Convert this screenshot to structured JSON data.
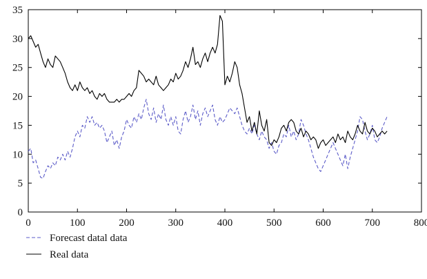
{
  "chart_data": {
    "type": "line",
    "title": "",
    "xlabel": "",
    "ylabel": "",
    "xlim": [
      0,
      800
    ],
    "ylim": [
      0,
      35
    ],
    "xticks": [
      0,
      100,
      200,
      300,
      400,
      500,
      600,
      700,
      800
    ],
    "yticks": [
      0,
      5,
      10,
      15,
      20,
      25,
      30,
      35
    ],
    "grid": false,
    "legend_position": "bottom-left",
    "series": [
      {
        "name": "Forecast datal data",
        "style": "dashed",
        "color": "#5b5bc8",
        "x": [
          0,
          5,
          10,
          15,
          20,
          25,
          30,
          35,
          40,
          45,
          50,
          55,
          60,
          65,
          70,
          75,
          80,
          85,
          90,
          95,
          100,
          105,
          110,
          115,
          120,
          125,
          130,
          135,
          140,
          145,
          150,
          155,
          160,
          165,
          170,
          175,
          180,
          185,
          190,
          195,
          200,
          205,
          210,
          215,
          220,
          225,
          230,
          235,
          240,
          245,
          250,
          255,
          260,
          265,
          270,
          275,
          280,
          285,
          290,
          295,
          300,
          305,
          310,
          315,
          320,
          325,
          330,
          335,
          340,
          345,
          350,
          355,
          360,
          365,
          370,
          375,
          380,
          385,
          390,
          395,
          400,
          405,
          410,
          415,
          420,
          425,
          430,
          435,
          440,
          445,
          450,
          455,
          460,
          465,
          470,
          475,
          480,
          485,
          490,
          495,
          500,
          505,
          510,
          515,
          520,
          525,
          530,
          535,
          540,
          545,
          550,
          555,
          560,
          565,
          570,
          575,
          580,
          585,
          590,
          595,
          600,
          605,
          610,
          615,
          620,
          625,
          630,
          635,
          640,
          645,
          650,
          655,
          660,
          665,
          670,
          675,
          680,
          685,
          690,
          695,
          700,
          705,
          710,
          715,
          720,
          725,
          730
        ],
        "values": [
          10.5,
          11,
          8.5,
          9,
          7.5,
          6,
          5.8,
          7,
          8,
          7.5,
          8.5,
          8,
          9.5,
          9,
          10,
          9,
          10.5,
          9.5,
          11,
          13,
          14,
          13,
          15,
          14.5,
          16.5,
          15.5,
          16.5,
          15,
          15.5,
          14.5,
          15,
          14,
          12,
          13,
          14,
          11.5,
          12.5,
          11,
          13,
          14,
          16,
          15,
          14.5,
          16.5,
          15.5,
          17,
          16,
          18,
          19.5,
          17,
          16,
          18,
          15.5,
          17,
          16,
          18.5,
          16,
          15,
          16.5,
          15,
          16.5,
          14,
          13.5,
          16,
          17.5,
          15.5,
          16.5,
          18.5,
          16,
          17.5,
          15,
          17,
          18,
          16.5,
          17.5,
          18.5,
          16,
          15,
          16.5,
          15.5,
          16,
          17,
          18,
          17.5,
          17,
          18,
          16.5,
          15,
          14,
          13.5,
          14.5,
          13.5,
          15,
          13.5,
          12.5,
          14,
          13,
          12.5,
          11,
          12,
          10.5,
          10,
          11.5,
          12,
          13.5,
          13,
          15,
          13,
          14,
          12.5,
          13.5,
          16,
          15,
          13.5,
          12.5,
          11,
          9.5,
          8.5,
          7.5,
          7,
          8,
          9,
          10,
          11,
          12,
          11,
          10,
          9,
          8,
          10,
          7.5,
          9.5,
          11,
          12.5,
          14,
          16.5,
          16,
          14,
          12.5,
          13.5,
          15,
          12.5,
          12,
          13,
          14.5,
          15.5,
          16.5
        ]
      },
      {
        "name": "Real data",
        "style": "solid",
        "color": "#000000",
        "x": [
          0,
          5,
          10,
          15,
          20,
          25,
          30,
          35,
          40,
          45,
          50,
          55,
          60,
          65,
          70,
          75,
          80,
          85,
          90,
          95,
          100,
          105,
          110,
          115,
          120,
          125,
          130,
          135,
          140,
          145,
          150,
          155,
          160,
          165,
          170,
          175,
          180,
          185,
          190,
          195,
          200,
          205,
          210,
          215,
          220,
          225,
          230,
          235,
          240,
          245,
          250,
          255,
          260,
          265,
          270,
          275,
          280,
          285,
          290,
          295,
          300,
          305,
          310,
          315,
          320,
          325,
          330,
          335,
          340,
          345,
          350,
          355,
          360,
          365,
          370,
          375,
          380,
          385,
          390,
          395,
          400,
          405,
          410,
          415,
          420,
          425,
          430,
          435,
          440,
          445,
          450,
          455,
          460,
          465,
          470,
          475,
          480,
          485,
          490,
          495,
          500,
          505,
          510,
          515,
          520,
          525,
          530,
          535,
          540,
          545,
          550,
          555,
          560,
          565,
          570,
          575,
          580,
          585,
          590,
          595,
          600,
          605,
          610,
          615,
          620,
          625,
          630,
          635,
          640,
          645,
          650,
          655,
          660,
          665,
          670,
          675,
          680,
          685,
          690,
          695,
          700,
          705,
          710,
          715,
          720,
          725,
          730
        ],
        "values": [
          30,
          30.5,
          29.5,
          28.5,
          29,
          27.5,
          26,
          25,
          26.5,
          25.5,
          25,
          27,
          26.5,
          26,
          25,
          24,
          22.5,
          21.5,
          21,
          22,
          21,
          22.5,
          21.5,
          21,
          21.5,
          20.5,
          21,
          20,
          19.5,
          20.5,
          20,
          20.5,
          19.5,
          19,
          19,
          19,
          19.5,
          19,
          19.5,
          19.5,
          20,
          20.5,
          20,
          21,
          21.5,
          24.5,
          24,
          23.5,
          22.5,
          23,
          22.5,
          22,
          23.5,
          22,
          21.5,
          21,
          21.5,
          22,
          23,
          22.5,
          24,
          23,
          23.5,
          24.5,
          26,
          25,
          26.5,
          28.5,
          25.5,
          26,
          25,
          26.5,
          27.5,
          26,
          27.5,
          28.5,
          27.5,
          29,
          34,
          33,
          22,
          23.5,
          22.5,
          24,
          26,
          25,
          22,
          20.5,
          18,
          15.5,
          16.5,
          14,
          15.5,
          13.5,
          17.5,
          15,
          14,
          16,
          12,
          11.5,
          12.5,
          12,
          13,
          14.5,
          15,
          14,
          15.5,
          16,
          15.5,
          14,
          13.5,
          14.5,
          13,
          14,
          13.5,
          12.5,
          13,
          12.5,
          11,
          12,
          12.5,
          11.5,
          12,
          12.5,
          13,
          12,
          13.5,
          12.5,
          13,
          12,
          14,
          13,
          12.5,
          13.5,
          15,
          14,
          13.5,
          15.5,
          14,
          13.5,
          14.5,
          14,
          13,
          13.5,
          14,
          13.5,
          14
        ]
      }
    ]
  }
}
